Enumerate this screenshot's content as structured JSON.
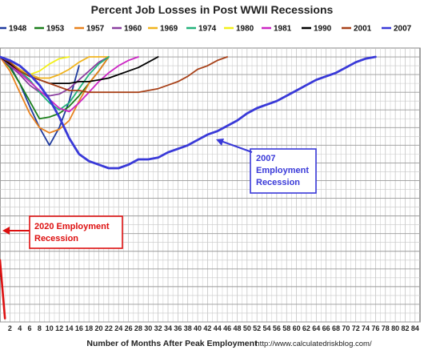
{
  "chart_data": {
    "type": "line",
    "title": "Percent Job Losses in Post WWII Recessions",
    "xlabel": "Number of Months After Peak Employment",
    "source": "http://www.calculatedriskblog.com/",
    "x_ticks": [
      2,
      4,
      6,
      8,
      10,
      12,
      14,
      16,
      18,
      20,
      22,
      24,
      26,
      28,
      30,
      32,
      34,
      36,
      38,
      40,
      42,
      44,
      46,
      48,
      50,
      52,
      54,
      56,
      58,
      60,
      62,
      64,
      66,
      68,
      70,
      72,
      74,
      76,
      78,
      80,
      82,
      84
    ],
    "x_tick_labels": [
      "2",
      "4",
      "6",
      "8",
      "10",
      "12",
      "14",
      "16",
      "18",
      "20",
      "22",
      "24",
      "26",
      "28",
      "30",
      "32",
      "34",
      "36",
      "38",
      "40",
      "42",
      "44",
      "46",
      "48",
      "50",
      "52",
      "54",
      "56",
      "58",
      "60",
      "62",
      "64",
      "66",
      "68",
      "70",
      "72",
      "74",
      "76",
      "78",
      "80",
      "82",
      "84"
    ],
    "xlim": [
      0,
      85
    ],
    "ylim": [
      -15,
      0.5
    ],
    "grid": true,
    "legend_position": "top",
    "series": [
      {
        "name": "1948",
        "color": "#1f3a9e",
        "x": [
          0,
          2,
          4,
          6,
          8,
          10,
          12,
          14,
          16
        ],
        "y": [
          0,
          -0.5,
          -1.5,
          -2.8,
          -4.0,
          -5.0,
          -4.0,
          -2.5,
          -0.5
        ]
      },
      {
        "name": "1953",
        "color": "#1b7f1b",
        "x": [
          0,
          2,
          4,
          6,
          8,
          10,
          12,
          14,
          16,
          18,
          20,
          22
        ],
        "y": [
          0,
          -0.6,
          -1.5,
          -2.5,
          -3.5,
          -3.4,
          -3.2,
          -2.8,
          -2.2,
          -1.5,
          -0.8,
          0
        ]
      },
      {
        "name": "1957",
        "color": "#e8821e",
        "x": [
          0,
          2,
          4,
          6,
          8,
          10,
          12,
          14,
          16,
          18,
          20,
          22
        ],
        "y": [
          0,
          -0.8,
          -2.0,
          -3.2,
          -4.0,
          -4.3,
          -4.1,
          -3.6,
          -2.5,
          -1.5,
          -0.8,
          0
        ]
      },
      {
        "name": "1960",
        "color": "#8b3fa0",
        "x": [
          0,
          2,
          4,
          6,
          8,
          10,
          12,
          14,
          16,
          18,
          20,
          22
        ],
        "y": [
          0,
          -0.5,
          -1.0,
          -1.6,
          -2.0,
          -2.2,
          -2.1,
          -1.8,
          -1.3,
          -0.8,
          -0.3,
          0
        ]
      },
      {
        "name": "1969",
        "color": "#f0b41e",
        "x": [
          0,
          2,
          4,
          6,
          8,
          10,
          12,
          14,
          16,
          18,
          20,
          22
        ],
        "y": [
          0,
          -0.3,
          -0.7,
          -1.0,
          -1.2,
          -1.2,
          -1.0,
          -0.7,
          -0.3,
          0,
          0,
          0
        ]
      },
      {
        "name": "1974",
        "color": "#22b27a",
        "x": [
          0,
          2,
          4,
          6,
          8,
          10,
          12,
          14,
          16,
          18,
          20,
          22
        ],
        "y": [
          0,
          -0.3,
          -0.8,
          -1.3,
          -2.0,
          -2.6,
          -3.0,
          -2.6,
          -1.8,
          -1.0,
          -0.4,
          0
        ]
      },
      {
        "name": "1980",
        "color": "#f2f01a",
        "x": [
          0,
          2,
          4,
          6,
          8,
          10,
          12,
          14
        ],
        "y": [
          0,
          -0.3,
          -0.8,
          -1.0,
          -0.8,
          -0.4,
          -0.1,
          0
        ]
      },
      {
        "name": "1981",
        "color": "#cc27c4",
        "x": [
          0,
          2,
          4,
          6,
          8,
          10,
          12,
          14,
          16,
          18,
          20,
          22,
          24,
          26,
          28
        ],
        "y": [
          0,
          -0.4,
          -0.9,
          -1.4,
          -1.9,
          -2.4,
          -2.9,
          -3.1,
          -2.6,
          -2.0,
          -1.4,
          -0.9,
          -0.5,
          -0.2,
          0
        ]
      },
      {
        "name": "1990",
        "color": "#000000",
        "x": [
          0,
          2,
          4,
          6,
          8,
          10,
          12,
          14,
          16,
          18,
          20,
          22,
          24,
          26,
          28,
          30,
          32
        ],
        "y": [
          0,
          -0.4,
          -0.8,
          -1.1,
          -1.3,
          -1.5,
          -1.5,
          -1.5,
          -1.4,
          -1.4,
          -1.3,
          -1.2,
          -1.0,
          -0.8,
          -0.6,
          -0.3,
          0
        ]
      },
      {
        "name": "2001",
        "color": "#a8421a",
        "x": [
          0,
          2,
          4,
          6,
          8,
          10,
          12,
          14,
          16,
          18,
          20,
          22,
          24,
          26,
          28,
          30,
          32,
          34,
          36,
          38,
          40,
          42,
          44,
          46
        ],
        "y": [
          0,
          -0.3,
          -0.8,
          -1.1,
          -1.3,
          -1.5,
          -1.7,
          -1.9,
          -1.9,
          -2.0,
          -2.0,
          -2.0,
          -2.0,
          -2.0,
          -2.0,
          -1.9,
          -1.8,
          -1.6,
          -1.4,
          -1.1,
          -0.7,
          -0.5,
          -0.2,
          0
        ]
      },
      {
        "name": "2007",
        "color": "#3939d8",
        "x": [
          0,
          2,
          4,
          6,
          8,
          10,
          12,
          14,
          16,
          18,
          20,
          22,
          24,
          26,
          28,
          30,
          32,
          34,
          36,
          38,
          40,
          42,
          44,
          46,
          48,
          50,
          52,
          54,
          56,
          58,
          60,
          62,
          64,
          66,
          68,
          70,
          72,
          74,
          76
        ],
        "y": [
          0,
          -0.2,
          -0.5,
          -1.0,
          -1.6,
          -2.4,
          -3.4,
          -4.6,
          -5.5,
          -5.9,
          -6.1,
          -6.3,
          -6.3,
          -6.1,
          -5.8,
          -5.8,
          -5.7,
          -5.4,
          -5.2,
          -5.0,
          -4.7,
          -4.4,
          -4.2,
          -3.9,
          -3.6,
          -3.2,
          -2.9,
          -2.7,
          -2.5,
          -2.2,
          -1.9,
          -1.6,
          -1.3,
          -1.1,
          -0.9,
          -0.6,
          -0.3,
          -0.1,
          0
        ]
      }
    ],
    "annotations": [
      {
        "text_lines": [
          "2007",
          "Employment",
          "Recession"
        ],
        "color": "#3939d8",
        "points_to_series": "2007"
      },
      {
        "text_lines": [
          "2020 Employment",
          "Recession"
        ],
        "color": "#dd1010",
        "points_to_series": "2020"
      }
    ],
    "extra_series_2020": {
      "name": "2020",
      "color": "#dd1010",
      "x": [
        0,
        1
      ],
      "y": [
        -11.5,
        -14.8
      ]
    }
  }
}
